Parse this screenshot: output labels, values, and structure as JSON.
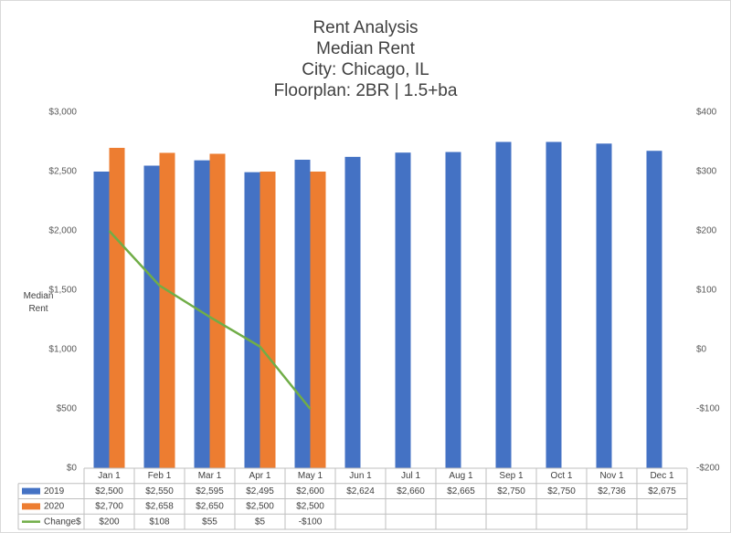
{
  "chart_data": {
    "type": "bar",
    "title_lines": [
      "Rent Analysis",
      "Median Rent",
      "City: Chicago, IL",
      "Floorplan:   2BR | 1.5+ba"
    ],
    "y_label": "Median Rent",
    "categories": [
      "Jan 1",
      "Feb 1",
      "Mar 1",
      "Apr 1",
      "May 1",
      "Jun 1",
      "Jul 1",
      "Aug 1",
      "Sep 1",
      "Oct 1",
      "Nov 1",
      "Dec 1"
    ],
    "series": [
      {
        "name": "2019",
        "type": "bar",
        "color": "#4472c4",
        "values": [
          2500,
          2550,
          2595,
          2495,
          2600,
          2624,
          2660,
          2665,
          2750,
          2750,
          2736,
          2675
        ],
        "value_labels": [
          "$2,500",
          "$2,550",
          "$2,595",
          "$2,495",
          "$2,600",
          "$2,624",
          "$2,660",
          "$2,665",
          "$2,750",
          "$2,750",
          "$2,736",
          "$2,675"
        ]
      },
      {
        "name": "2020",
        "type": "bar",
        "color": "#ed7d31",
        "values": [
          2700,
          2658,
          2650,
          2500,
          2500,
          null,
          null,
          null,
          null,
          null,
          null,
          null
        ],
        "value_labels": [
          "$2,700",
          "$2,658",
          "$2,650",
          "$2,500",
          "$2,500",
          null,
          null,
          null,
          null,
          null,
          null,
          null
        ]
      },
      {
        "name": "Change$",
        "type": "line",
        "axis": "y2",
        "color": "#70ad47",
        "values": [
          200,
          108,
          55,
          5,
          -100,
          null,
          null,
          null,
          null,
          null,
          null,
          null
        ],
        "value_labels": [
          "$200",
          "$108",
          "$55",
          "$5",
          "-$100",
          null,
          null,
          null,
          null,
          null,
          null,
          null
        ]
      }
    ],
    "ylim": [
      0,
      3000
    ],
    "yticks": [
      {
        "value": 0,
        "label": "$0"
      },
      {
        "value": 500,
        "label": "$500"
      },
      {
        "value": 1000,
        "label": "$1,000"
      },
      {
        "value": 1500,
        "label": "$1,500"
      },
      {
        "value": 2000,
        "label": "$2,000"
      },
      {
        "value": 2500,
        "label": "$2,500"
      },
      {
        "value": 3000,
        "label": "$3,000"
      }
    ],
    "y2lim": [
      -200,
      400
    ],
    "y2ticks": [
      {
        "value": -200,
        "label": "-$200"
      },
      {
        "value": -100,
        "label": "-$100"
      },
      {
        "value": 0,
        "label": "$0"
      },
      {
        "value": 100,
        "label": "$100"
      },
      {
        "value": 200,
        "label": "$200"
      },
      {
        "value": 300,
        "label": "$300"
      },
      {
        "value": 400,
        "label": "$400"
      }
    ],
    "grid": false,
    "data_table": true
  }
}
